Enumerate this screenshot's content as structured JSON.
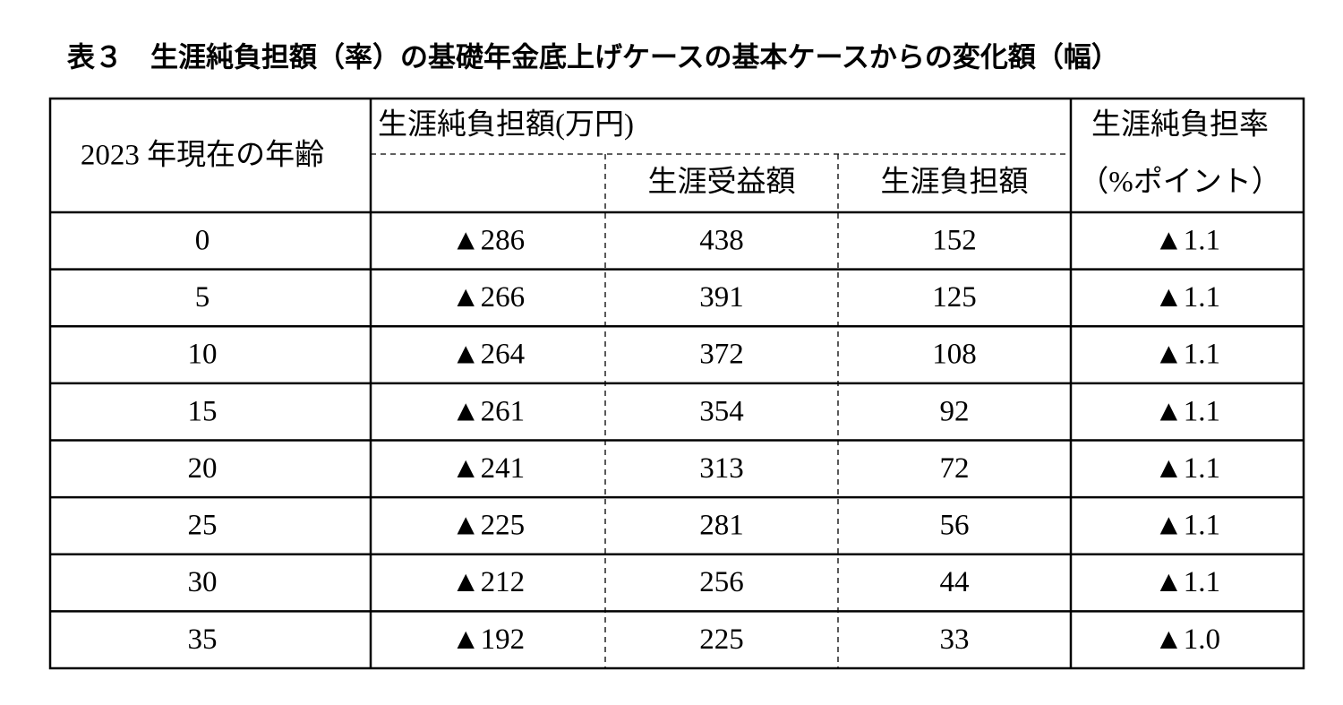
{
  "title": "表３　生涯純負担額（率）の基礎年金底上げケースの基本ケースからの変化額（幅）",
  "table": {
    "header": {
      "age": "2023 年現在の年齢",
      "net": "生涯純負担額(万円)",
      "benefit": "生涯受益額",
      "burden": "生涯負担額",
      "rate_line1": "生涯純負担率",
      "rate_line2": "（%ポイント）"
    },
    "rows": [
      [
        "0",
        "▲286",
        "438",
        "152",
        "▲1.1"
      ],
      [
        "5",
        "▲266",
        "391",
        "125",
        "▲1.1"
      ],
      [
        "10",
        "▲264",
        "372",
        "108",
        "▲1.1"
      ],
      [
        "15",
        "▲261",
        "354",
        "92",
        "▲1.1"
      ],
      [
        "20",
        "▲241",
        "313",
        "72",
        "▲1.1"
      ],
      [
        "25",
        "▲225",
        "281",
        "56",
        "▲1.1"
      ],
      [
        "30",
        "▲212",
        "256",
        "44",
        "▲1.1"
      ],
      [
        "35",
        "▲192",
        "225",
        "33",
        "▲1.0"
      ]
    ]
  }
}
